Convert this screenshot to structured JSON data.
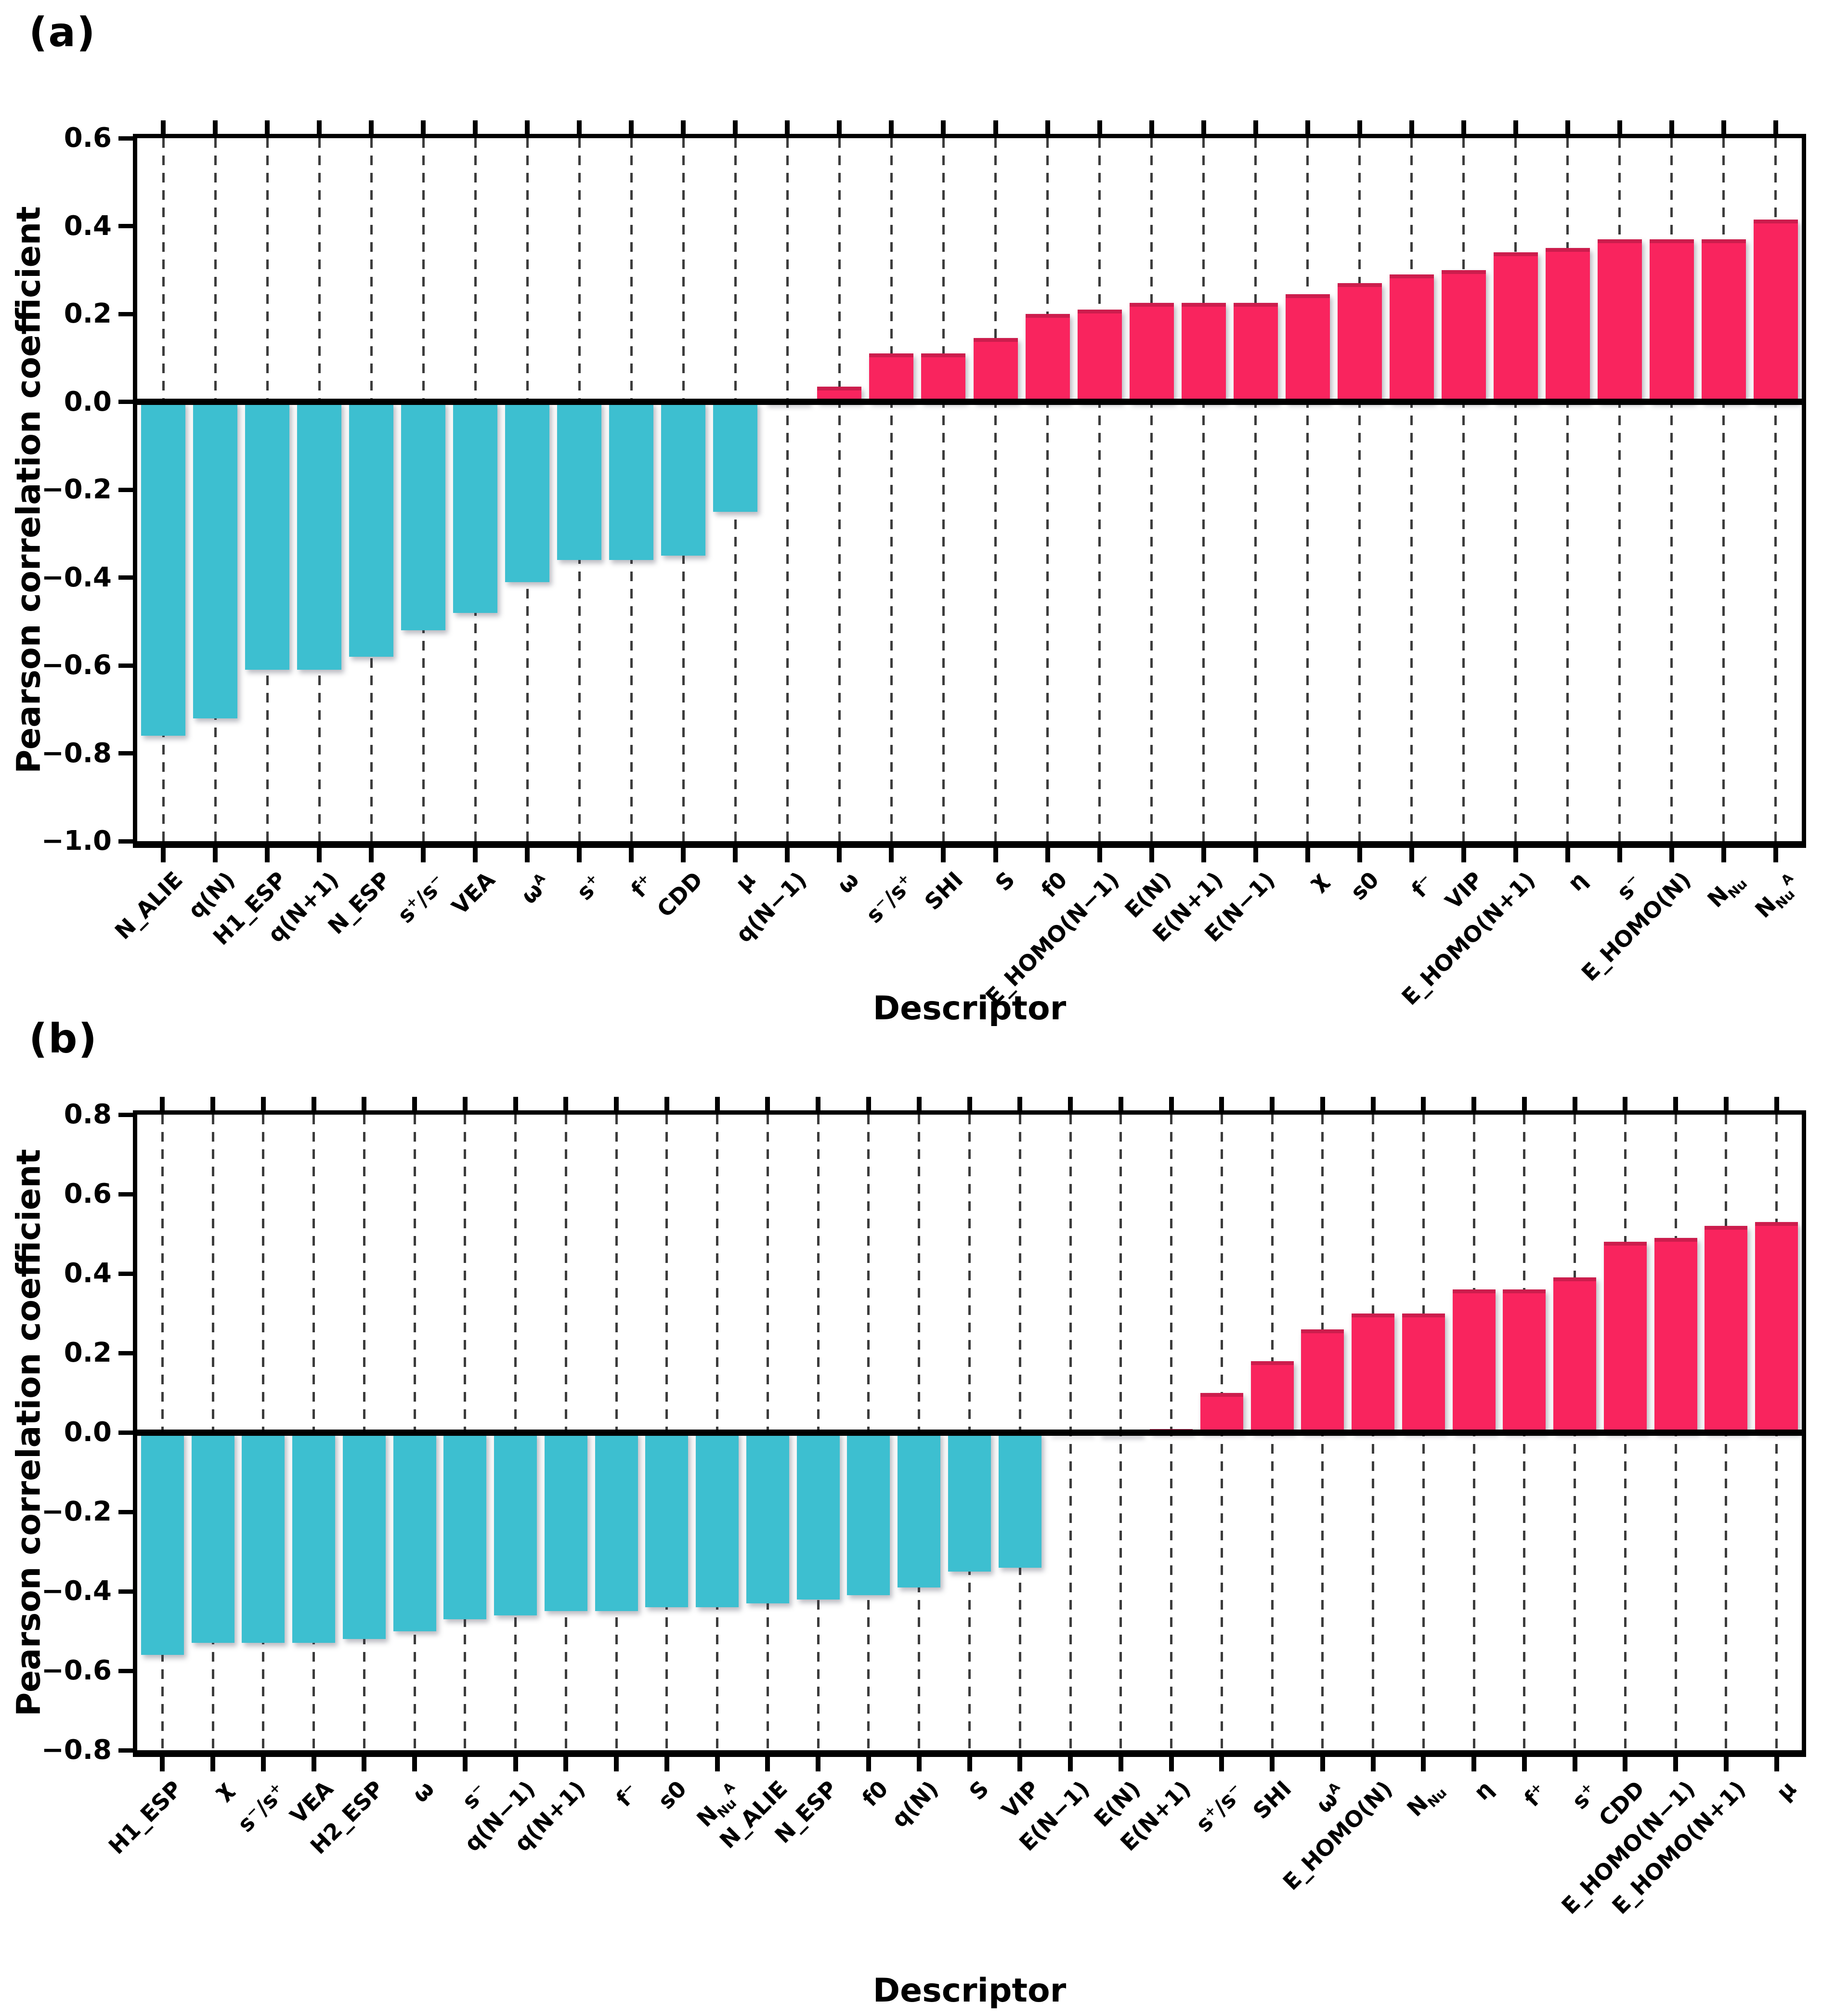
{
  "figure": {
    "panel_a_label": "(a)",
    "panel_b_label": "(b)"
  },
  "chart_data": [
    {
      "type": "bar",
      "panel_label": "(a)",
      "xlabel": "Descriptor",
      "ylabel": "Pearson correlation coefficient",
      "ylim": [
        -1.0,
        0.6
      ],
      "yticks": [
        "0.6",
        "0.4",
        "0.2",
        "0.0",
        "−0.2",
        "−0.4",
        "−0.6",
        "−0.8",
        "−1.0"
      ],
      "grid": "vertical-dashed",
      "legend": null,
      "colors": {
        "negative": "#3dbfd0",
        "positive": "#f9245e"
      },
      "categories": [
        "N_ALIE",
        "q(N)",
        "H1_ESP",
        "q(N+1)",
        "N_ESP",
        "s^{+}/s^{−}",
        "VEA",
        "ω^{A}",
        "s^{+}",
        "f^{+}",
        "CDD",
        "μ",
        "q(N−1)",
        "ω",
        "s^{−}/s^{+}",
        "SHI",
        "S",
        "f0",
        "E_HOMO(N−1)",
        "E(N)",
        "E(N+1)",
        "E(N−1)",
        "χ",
        "s0",
        "f^{−}",
        "VIP",
        "E_HOMO(N+1)",
        "η",
        "s^{−}",
        "E_HOMO(N)",
        "N~{Nu}",
        "N~{Nu}^{A}"
      ],
      "values": [
        -0.76,
        -0.72,
        -0.61,
        -0.61,
        -0.58,
        -0.52,
        -0.48,
        -0.41,
        -0.36,
        -0.36,
        -0.35,
        -0.25,
        0.005,
        0.035,
        0.11,
        0.11,
        0.145,
        0.2,
        0.21,
        0.225,
        0.225,
        0.225,
        0.245,
        0.27,
        0.29,
        0.3,
        0.34,
        0.35,
        0.37,
        0.37,
        0.37,
        0.415
      ]
    },
    {
      "type": "bar",
      "panel_label": "(b)",
      "xlabel": "Descriptor",
      "ylabel": "Pearson correlation coefficient",
      "ylim": [
        -0.8,
        0.8
      ],
      "yticks": [
        "0.8",
        "0.6",
        "0.4",
        "0.2",
        "0.0",
        "−0.2",
        "−0.4",
        "−0.6",
        "−0.8"
      ],
      "grid": "vertical-dashed",
      "legend": null,
      "colors": {
        "negative": "#3dbfd0",
        "positive": "#f9245e"
      },
      "categories": [
        "H1_ESP",
        "χ",
        "s^{−}/s^{+}",
        "VEA",
        "H2_ESP",
        "ω",
        "s^{−}",
        "q(N−1)",
        "q(N+1)",
        "f^{−}",
        "s0",
        "N~{Nu}^{A}",
        "N_ALIE",
        "N_ESP",
        "f0",
        "q(N)",
        "S",
        "VIP",
        "E(N−1)",
        "E(N)",
        "E(N+1)",
        "s^{+}/s^{−}",
        "SHI",
        "ω^{A}",
        "E_HOMO(N)",
        "N~{Nu}",
        "η",
        "f^{+}",
        "s^{+}",
        "CDD",
        "E_HOMO(N−1)",
        "E_HOMO(N+1)",
        "μ"
      ],
      "values": [
        -0.56,
        -0.53,
        -0.53,
        -0.53,
        -0.52,
        -0.5,
        -0.47,
        -0.46,
        -0.45,
        -0.45,
        -0.44,
        -0.44,
        -0.43,
        -0.42,
        -0.41,
        -0.39,
        -0.35,
        -0.34,
        -0.005,
        0.003,
        0.008,
        0.1,
        0.18,
        0.26,
        0.3,
        0.3,
        0.36,
        0.36,
        0.39,
        0.48,
        0.49,
        0.52,
        0.53
      ]
    }
  ]
}
